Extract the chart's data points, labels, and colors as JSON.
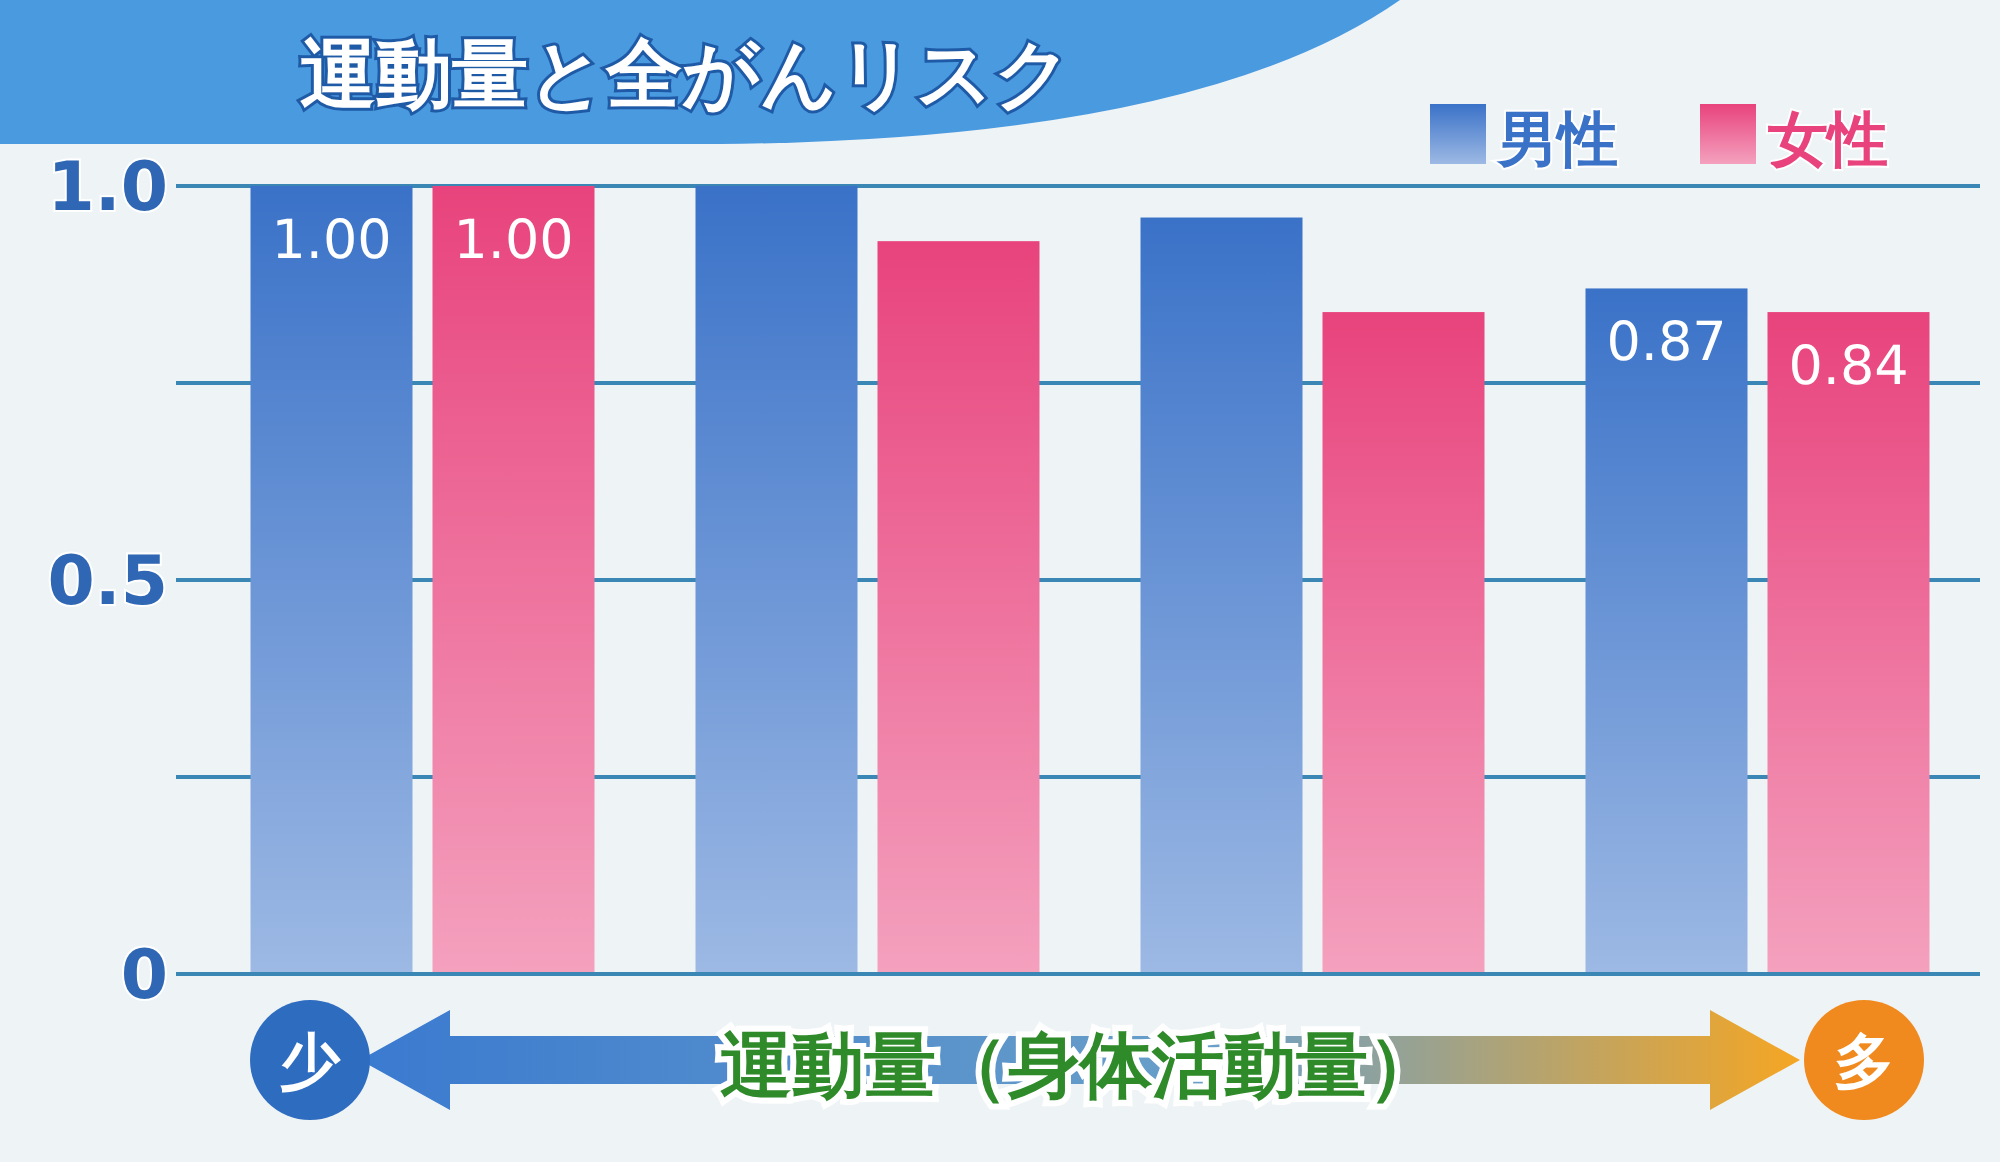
{
  "chart_data": {
    "type": "bar",
    "title": "運動量と全がんリスク",
    "xlabel": "運動量（身体活動量）",
    "annotations": [
      "少",
      "多"
    ],
    "categories": [
      null,
      null,
      null,
      null
    ],
    "series": [
      {
        "name": "男性",
        "color": "#3a72c8",
        "values": [
          1.0,
          1.0,
          0.96,
          0.87
        ],
        "value_labels": [
          "1.00",
          null,
          null,
          "0.87"
        ]
      },
      {
        "name": "女性",
        "color": "#e8437c",
        "values": [
          1.0,
          0.93,
          0.84,
          0.84
        ],
        "value_labels": [
          "1.00",
          null,
          null,
          "0.84"
        ]
      }
    ],
    "ylim": [
      0,
      1.0
    ],
    "yticks": [
      0,
      {
        "value": 0.25,
        "label": null
      },
      0.5,
      {
        "value": 0.75,
        "label": null
      },
      {
        "value": 1.0,
        "label": "1.0"
      }
    ],
    "grid": "y",
    "legend": "top right"
  }
}
